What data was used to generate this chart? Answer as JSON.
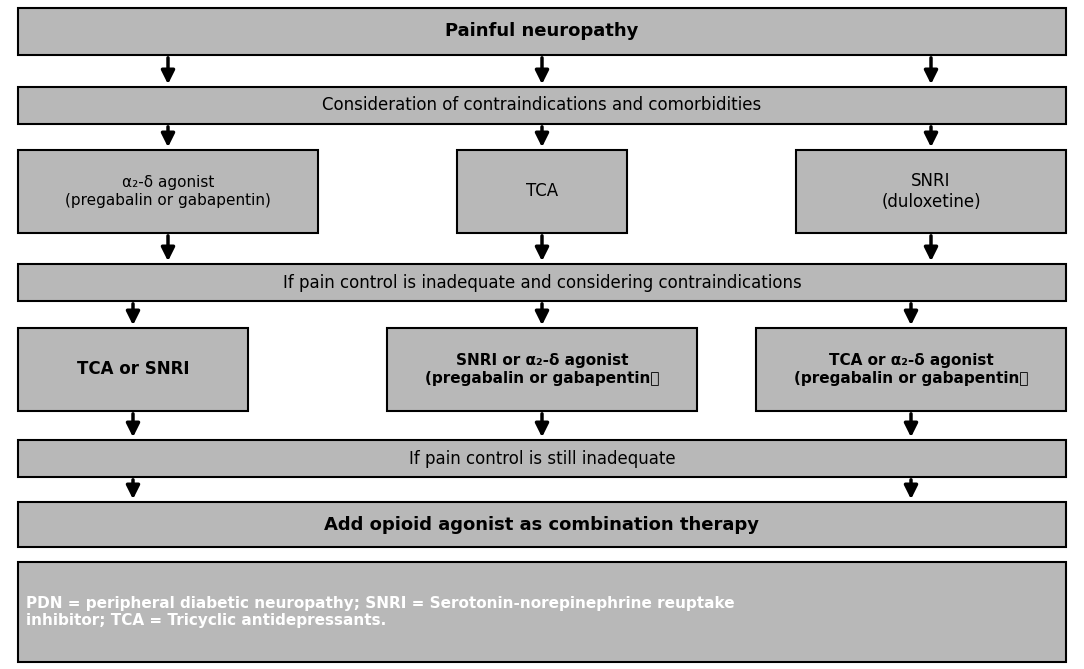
{
  "bg_color": "#ffffff",
  "box_color": "#b8b8b8",
  "border_color": "#000000",
  "text_color": "#000000",
  "white_text": "#ffffff",
  "title": "Painful neuropathy",
  "row1_text": "Consideration of contraindications and comorbidities",
  "box_l1_text": "α₂-δ agonist\n(pregabalin or gabapentin)",
  "box_m1_text": "TCA",
  "box_r1_text": "SNRI\n(duloxetine)",
  "row2_text": "If pain control is inadequate and considering contraindications",
  "box_l2_text": "TCA or SNRI",
  "box_m2_text": "SNRI or α₂-δ agonist\n(pregabalin or gabapentin）",
  "box_r2_text": "TCA or α₂-δ agonist\n(pregabalin or gabapentin）",
  "row3_text": "If pain control is still inadequate",
  "row4_text": "Add opioid agonist as combination therapy",
  "footnote": "PDN = peripheral diabetic neuropathy; SNRI = Serotonin-norepinephrine reuptake\ninhibitor; TCA = Tricyclic antidepressants.",
  "arrow_color": "#000000",
  "fig_w": 10.84,
  "fig_h": 6.69,
  "dpi": 100
}
